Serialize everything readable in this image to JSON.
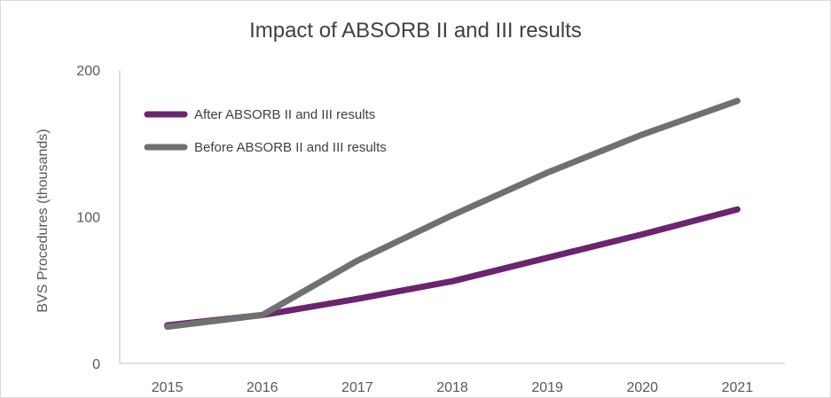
{
  "chart_data": {
    "type": "line",
    "title": "Impact of ABSORB II and III results",
    "xlabel": "",
    "ylabel": "BVS Procedures (thousands)",
    "categories": [
      "2015",
      "2016",
      "2017",
      "2018",
      "2019",
      "2020",
      "2021"
    ],
    "ylim": [
      0,
      200
    ],
    "yticks": [
      0,
      100,
      200
    ],
    "grid": false,
    "legend_position": "top-left",
    "series": [
      {
        "name": "After ABSORB II and III results",
        "color": "#6b2470",
        "values": [
          26,
          33,
          44,
          56,
          72,
          88,
          105
        ]
      },
      {
        "name": "Before ABSORB II and III results",
        "color": "#707070",
        "values": [
          25,
          33,
          70,
          101,
          130,
          156,
          179
        ]
      }
    ]
  }
}
